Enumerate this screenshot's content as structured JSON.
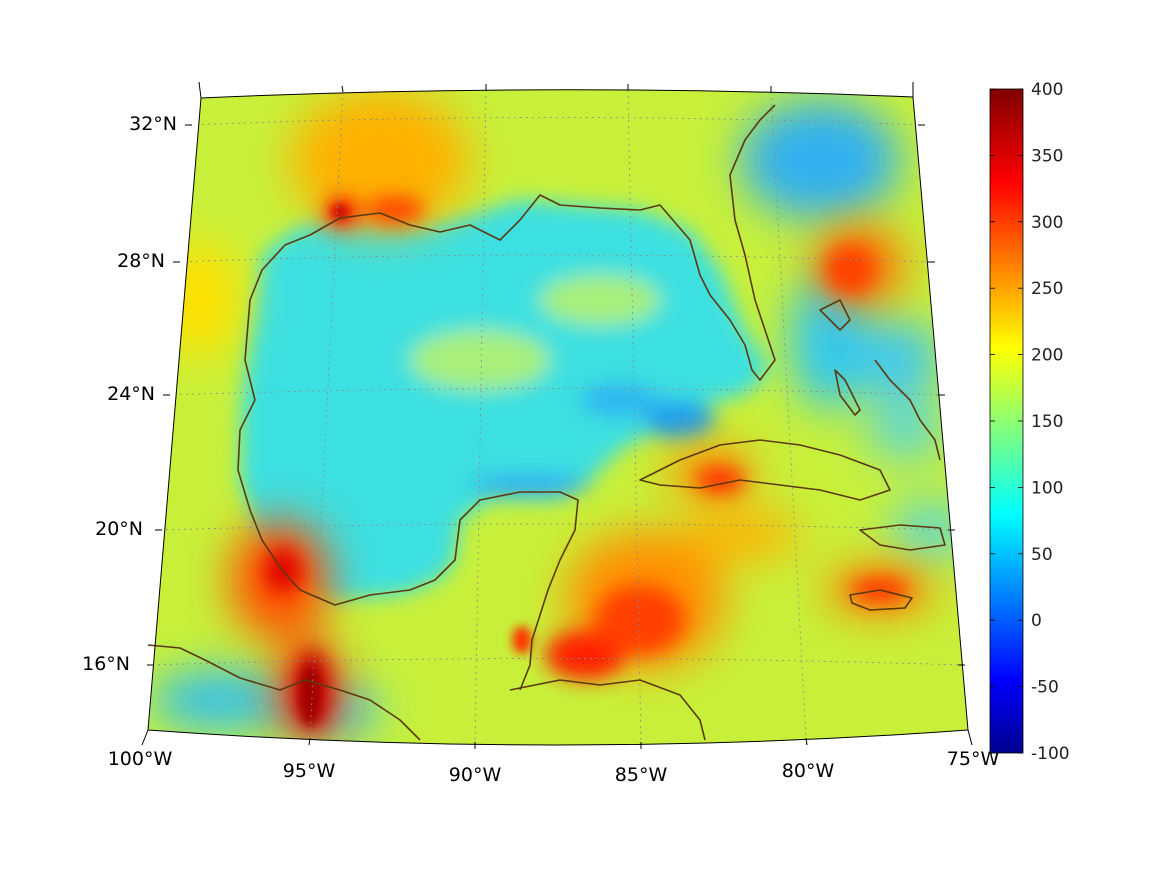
{
  "map": {
    "projection": "lambert-conic",
    "region": "Gulf of Mexico and Caribbean",
    "lon_range": [
      -100,
      -75
    ],
    "lat_range": [
      14,
      33
    ],
    "lon_ticks": [
      "100°W",
      "95°W",
      "90°W",
      "85°W",
      "80°W",
      "75°W"
    ],
    "lat_ticks": [
      "32°N",
      "28°N",
      "24°N",
      "20°N",
      "16°N"
    ],
    "gridlines": true,
    "coastline_color": "#5b3a10",
    "field_description": "Sea-surface / atmospheric field shown in jet colormap"
  },
  "colorbar": {
    "colormap": "jet",
    "min": -100,
    "max": 400,
    "tick_labels": [
      "400",
      "350",
      "300",
      "250",
      "200",
      "150",
      "100",
      "50",
      "0",
      "-50",
      "-100"
    ],
    "location": "right"
  }
}
